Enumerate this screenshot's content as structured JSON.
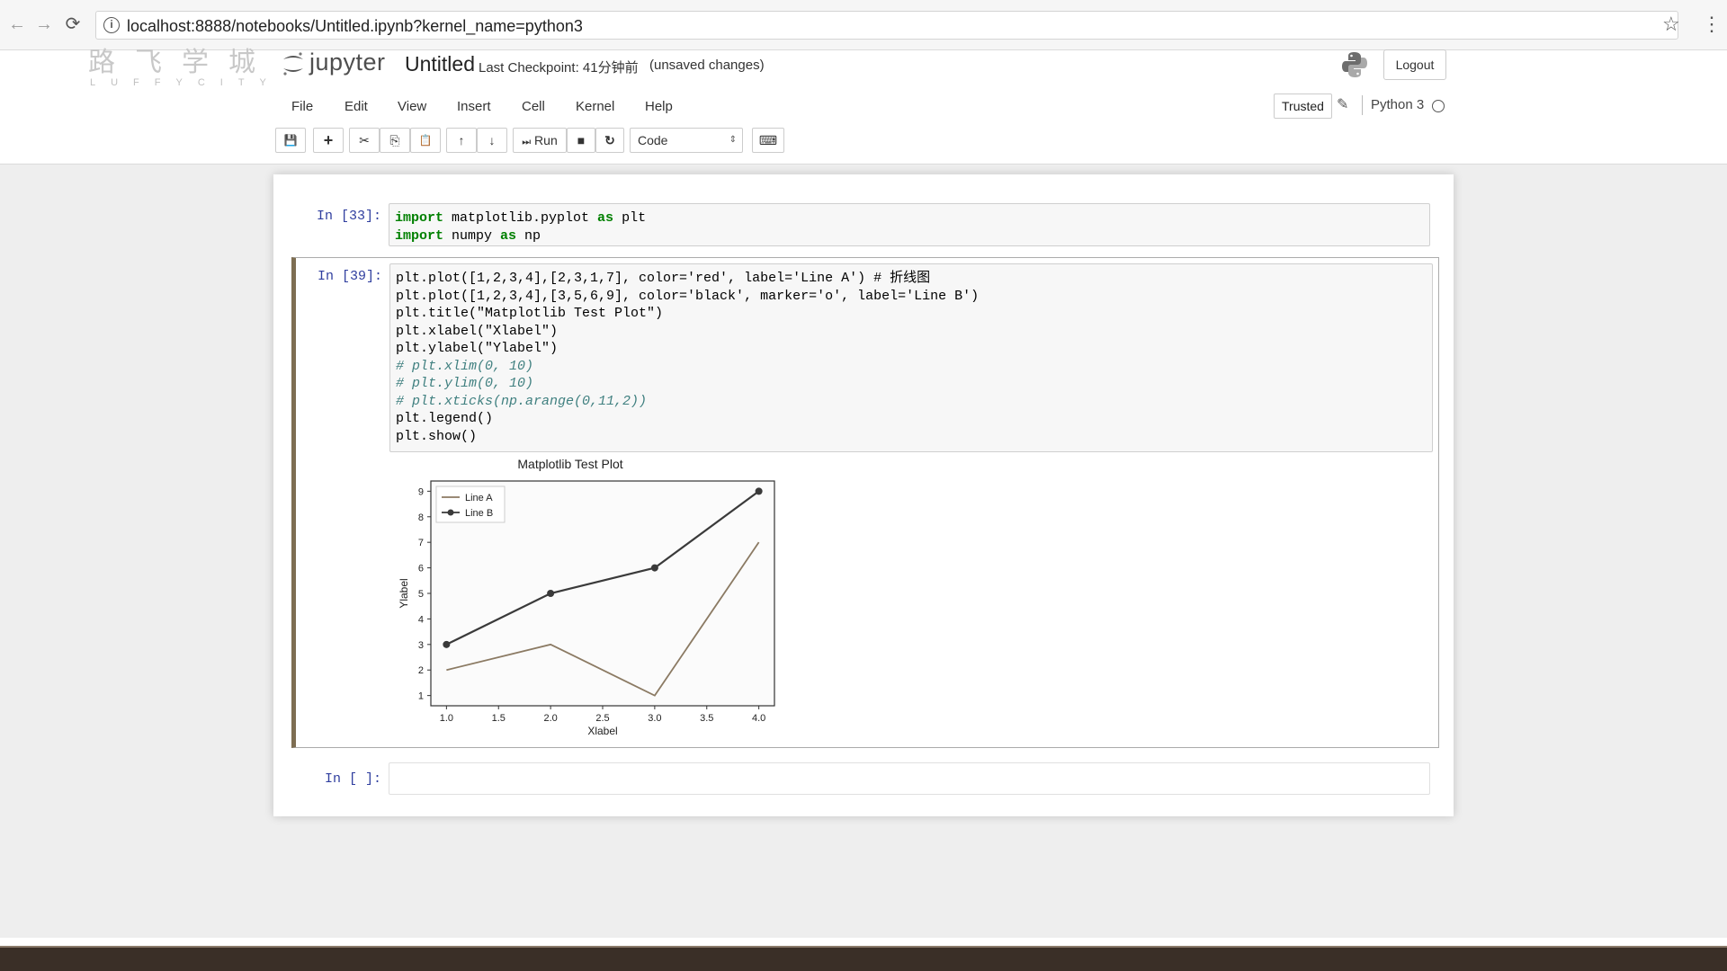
{
  "browser": {
    "url": "localhost:8888/notebooks/Untitled.ipynb?kernel_name=python3",
    "back_icon": "←",
    "forward_icon": "→",
    "reload_icon": "⟳",
    "info_icon": "i",
    "star_icon": "☆",
    "menu_icon": "⋮"
  },
  "watermark": {
    "chars": "路飞学城",
    "sub": "LUFFYCITY"
  },
  "header": {
    "logo_text": "jupyter",
    "notebook_name": "Untitled",
    "checkpoint": "Last Checkpoint: 41分钟前",
    "unsaved": "(unsaved changes)",
    "logout": "Logout"
  },
  "menu": {
    "items": [
      "File",
      "Edit",
      "View",
      "Insert",
      "Cell",
      "Kernel",
      "Help"
    ]
  },
  "kernel": {
    "trusted": "Trusted",
    "pencil_icon": "✎",
    "name": "Python 3"
  },
  "toolbar": {
    "save_icon": "💾",
    "add_icon": "+",
    "cut_icon": "✂",
    "copy_icon": "⎘",
    "paste_icon": "📋",
    "up_icon": "↑",
    "down_icon": "↓",
    "run_label": "Run",
    "run_icon": "⏭",
    "stop_icon": "■",
    "restart_icon": "↻",
    "cell_type": "Code",
    "select_arrow": "⇕",
    "keyboard_icon": "⌨"
  },
  "cells": [
    {
      "prompt": "In [33]:",
      "lines": [
        "import matplotlib.pyplot as plt",
        "import numpy as np"
      ]
    },
    {
      "prompt": "In [39]:",
      "lines": [
        "plt.plot([1,2,3,4],[2,3,1,7], color='red', label='Line A') # 折线图",
        "plt.plot([1,2,3,4],[3,5,6,9], color='black', marker='o', label='Line B')",
        "plt.title(\"Matplotlib Test Plot\")",
        "plt.xlabel(\"Xlabel\")",
        "plt.ylabel(\"Ylabel\")",
        "# plt.xlim(0, 10)",
        "# plt.ylim(0, 10)",
        "# plt.xticks(np.arange(0,11,2))",
        "plt.legend()",
        "plt.show()"
      ]
    },
    {
      "prompt": "In [ ]:",
      "lines": []
    }
  ],
  "chart_data": {
    "type": "line",
    "title": "Matplotlib Test Plot",
    "xlabel": "Xlabel",
    "ylabel": "Ylabel",
    "xlim": [
      0.85,
      4.15
    ],
    "ylim": [
      0.6,
      9.4
    ],
    "xticks": [
      "1.0",
      "1.5",
      "2.0",
      "2.5",
      "3.0",
      "3.5",
      "4.0"
    ],
    "xtick_values": [
      1.0,
      1.5,
      2.0,
      2.5,
      3.0,
      3.5,
      4.0
    ],
    "yticks": [
      "1",
      "2",
      "3",
      "4",
      "5",
      "6",
      "7",
      "8",
      "9"
    ],
    "ytick_values": [
      1,
      2,
      3,
      4,
      5,
      6,
      7,
      8,
      9
    ],
    "legend_position": "top-left",
    "series": [
      {
        "name": "Line A",
        "x": [
          1,
          2,
          3,
          4
        ],
        "y": [
          2,
          3,
          1,
          7
        ],
        "color": "#8b7a63",
        "marker": "none"
      },
      {
        "name": "Line B",
        "x": [
          1,
          2,
          3,
          4
        ],
        "y": [
          3,
          5,
          6,
          9
        ],
        "color": "#3a3a3a",
        "marker": "o"
      }
    ]
  }
}
